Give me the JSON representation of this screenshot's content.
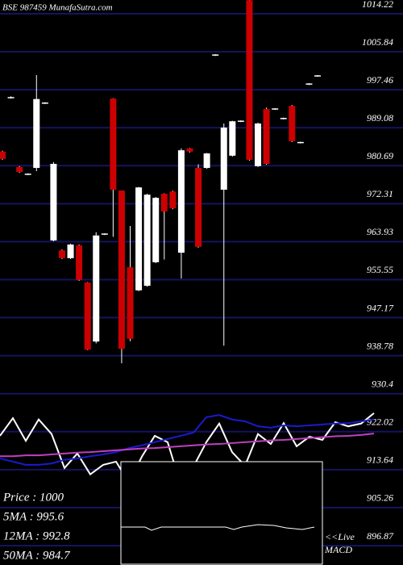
{
  "chart_data": {
    "type": "candlestick",
    "title": "BSE 987459 MunafaSutra.com",
    "ylim": [
      892.6,
      1017.25
    ],
    "yticks": [
      1014.22,
      1005.84,
      997.46,
      989.08,
      980.69,
      972.31,
      963.93,
      955.55,
      947.17,
      938.78,
      930.4,
      922.02,
      913.64,
      905.26,
      896.87
    ],
    "grid": true,
    "up_color": "#ffffff",
    "down_color": "#cc0000",
    "open": [
      983.8,
      995.7,
      980.4,
      978.8,
      980.2,
      994.5,
      964.2,
      962.0,
      960.3,
      963.1,
      954.9,
      941.9,
      965.6,
      995.5,
      975.2,
      958.3,
      953.2,
      954.2,
      959.4,
      974.5,
      975.0,
      961.5,
      984.5,
      980.2,
      980.2,
      1005.1,
      975.4,
      982.9,
      990.5,
      1017.2,
      980.6,
      993.2,
      993.2,
      991.1,
      993.9,
      985.8,
      998.7,
      1000.5
    ],
    "high": [
      984.0,
      996.0,
      980.6,
      979.0,
      1000.7,
      994.7,
      981.5,
      962.2,
      963.5,
      963.3,
      955.0,
      966.0,
      965.8,
      995.6,
      975.2,
      967.4,
      976.0,
      974.5,
      973.8,
      974.6,
      975.2,
      984.5,
      984.6,
      981.0,
      983.5,
      1005.3,
      990.0,
      990.6,
      990.7,
      1017.25,
      990.2,
      993.5,
      993.4,
      991.3,
      994.1,
      986.0,
      998.9,
      1000.7
    ],
    "low": [
      982.0,
      995.5,
      979.1,
      978.6,
      979.5,
      994.3,
      964.0,
      960.1,
      960.1,
      955.3,
      940.0,
      941.5,
      965.4,
      965.0,
      937.1,
      942.0,
      953.0,
      954.0,
      959.2,
      960.0,
      971.1,
      955.8,
      983.6,
      962.6,
      980.0,
      1004.9,
      941.0,
      982.7,
      990.3,
      981.8,
      980.4,
      980.9,
      993.0,
      990.9,
      985.9,
      985.6,
      998.5,
      1000.3
    ],
    "close": [
      982.2,
      995.7,
      979.3,
      978.8,
      995.4,
      994.5,
      981.1,
      960.3,
      963.3,
      955.5,
      940.1,
      965.3,
      965.6,
      975.4,
      940.3,
      942.5,
      975.9,
      974.3,
      973.6,
      970.6,
      971.3,
      984.1,
      983.8,
      962.8,
      983.4,
      1005.1,
      989.1,
      990.5,
      990.5,
      982.0,
      990.0,
      981.1,
      993.2,
      991.1,
      986.1,
      985.8,
      998.7,
      1000.5
    ],
    "series": [
      {
        "color": "#ffffff",
        "values": [
          921.1,
          925.0,
          920.0,
          924.7,
          921.5,
          914.0,
          917.2,
          912.6,
          914.7,
          915.4,
          910.8,
          916.5,
          921.1,
          919.7,
          910.4,
          914.3,
          919.7,
          923.8,
          917.5,
          914.5,
          921.5,
          919.3,
          923.9,
          918.8,
          920.9,
          920.2,
          924.1,
          923.2,
          923.8,
          926.1
        ]
      },
      {
        "color": "#1a1ad0",
        "values": [
          916.1,
          915.4,
          914.7,
          914.7,
          915.0,
          915.8,
          916.1,
          916.6,
          917.0,
          917.5,
          918.4,
          919.0,
          919.7,
          920.4,
          921.1,
          921.8,
          925.2,
          925.7,
          924.7,
          924.3,
          923.2,
          922.9,
          923.4,
          923.2,
          923.4,
          923.6,
          923.8,
          923.9,
          924.3,
          924.7
        ]
      },
      {
        "color": "#c040c0",
        "values": [
          916.6,
          916.6,
          916.8,
          916.8,
          917.0,
          917.2,
          917.4,
          917.5,
          917.7,
          917.9,
          918.1,
          918.3,
          918.4,
          918.6,
          918.8,
          919.0,
          919.2,
          919.3,
          919.5,
          919.7,
          919.9,
          920.1,
          920.2,
          920.4,
          920.6,
          920.8,
          921.0,
          921.1,
          921.3,
          921.6
        ]
      }
    ],
    "info": [
      "Price : 1000",
      "5MA : 995.6",
      "12MA : 992.8",
      "50MA : 984.7"
    ],
    "macd_label": [
      "<<Live",
      "MACD"
    ]
  }
}
